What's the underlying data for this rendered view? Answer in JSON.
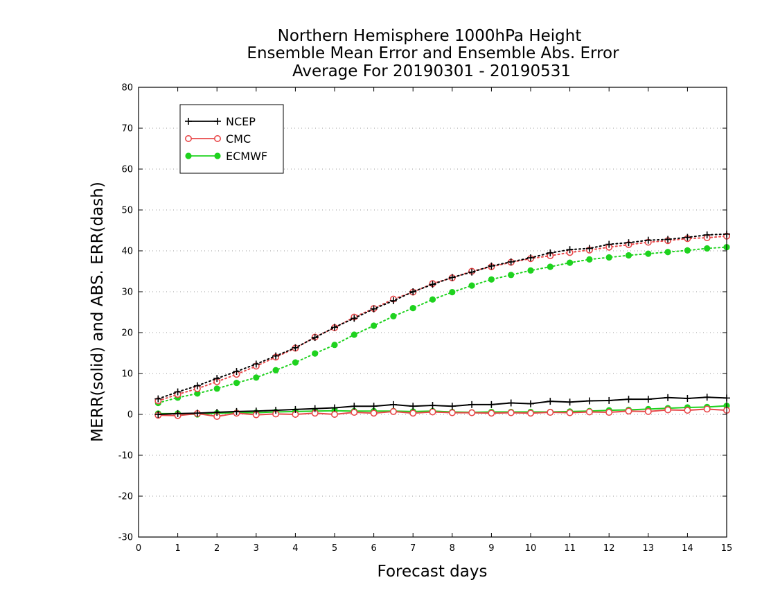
{
  "chart_data": {
    "type": "line",
    "title_lines": [
      "Northern Hemisphere 1000hPa Height",
      "Ensemble Mean Error and Ensemble Abs. Error",
      "Average For 20190301 - 20190531"
    ],
    "xlabel": "Forecast days",
    "ylabel": "MERR(solid) and ABS. ERR(dash)",
    "xlim": [
      0,
      15
    ],
    "ylim": [
      -30,
      80
    ],
    "xticks": [
      0,
      1,
      2,
      3,
      4,
      5,
      6,
      7,
      8,
      9,
      10,
      11,
      12,
      13,
      14,
      15
    ],
    "yticks": [
      -30,
      -20,
      -10,
      0,
      10,
      20,
      30,
      40,
      50,
      60,
      70,
      80
    ],
    "grid": "horizontal dotted",
    "legend_position": "top-left",
    "x": [
      0.5,
      1,
      1.5,
      2,
      2.5,
      3,
      3.5,
      4,
      4.5,
      5,
      5.5,
      6,
      6.5,
      7,
      7.5,
      8,
      8.5,
      9,
      9.5,
      10,
      10.5,
      11,
      11.5,
      12,
      12.5,
      13,
      13.5,
      14,
      14.5,
      15
    ],
    "series": [
      {
        "name": "NCEP",
        "color": "#000000",
        "marker": "plus",
        "merr": [
          0.0,
          0.2,
          0.3,
          0.5,
          0.7,
          0.8,
          1.0,
          1.2,
          1.4,
          1.6,
          2.0,
          2.0,
          2.4,
          2.0,
          2.2,
          2.0,
          2.4,
          2.4,
          2.8,
          2.6,
          3.2,
          3.0,
          3.3,
          3.4,
          3.7,
          3.7,
          4.1,
          3.9,
          4.2,
          4.0
        ],
        "abs_err": [
          3.8,
          5.5,
          7.0,
          8.8,
          10.5,
          12.3,
          14.3,
          16.3,
          18.8,
          21.3,
          23.5,
          25.8,
          27.8,
          30.0,
          31.8,
          33.5,
          34.8,
          36.3,
          37.3,
          38.3,
          39.5,
          40.3,
          40.6,
          41.6,
          42.0,
          42.6,
          42.8,
          43.3,
          43.9,
          44.1
        ]
      },
      {
        "name": "CMC",
        "color": "#e8484a",
        "marker": "open-circle",
        "merr": [
          -0.2,
          -0.3,
          0.2,
          -0.5,
          0.3,
          -0.1,
          0.1,
          0.0,
          0.3,
          0.0,
          0.5,
          0.3,
          0.7,
          0.3,
          0.6,
          0.4,
          0.4,
          0.3,
          0.4,
          0.3,
          0.5,
          0.4,
          0.6,
          0.5,
          0.8,
          0.7,
          1.1,
          1.0,
          1.3,
          1.0
        ],
        "abs_err": [
          3.3,
          4.9,
          6.3,
          8.0,
          9.8,
          11.8,
          14.0,
          16.2,
          18.9,
          21.2,
          23.8,
          25.9,
          28.2,
          29.9,
          32.0,
          33.4,
          35.0,
          36.1,
          37.2,
          38.1,
          38.8,
          39.6,
          40.2,
          40.9,
          41.5,
          42.1,
          42.5,
          43.0,
          43.2,
          43.6
        ]
      },
      {
        "name": "ECMWF",
        "color": "#1ed21e",
        "marker": "filled-circle",
        "merr": [
          0.2,
          0.2,
          0.0,
          0.3,
          0.4,
          0.4,
          0.6,
          0.7,
          0.8,
          0.9,
          0.8,
          0.8,
          0.8,
          0.7,
          0.8,
          0.6,
          0.5,
          0.6,
          0.6,
          0.6,
          0.6,
          0.7,
          0.8,
          1.0,
          1.1,
          1.3,
          1.5,
          1.7,
          1.8,
          2.1
        ],
        "abs_err": [
          2.8,
          4.1,
          5.1,
          6.3,
          7.7,
          9.0,
          10.8,
          12.7,
          14.9,
          17.0,
          19.5,
          21.7,
          24.0,
          26.0,
          28.1,
          29.9,
          31.5,
          33.0,
          34.1,
          35.2,
          36.1,
          37.1,
          37.9,
          38.4,
          38.9,
          39.3,
          39.7,
          40.1,
          40.6,
          40.9
        ]
      }
    ]
  }
}
